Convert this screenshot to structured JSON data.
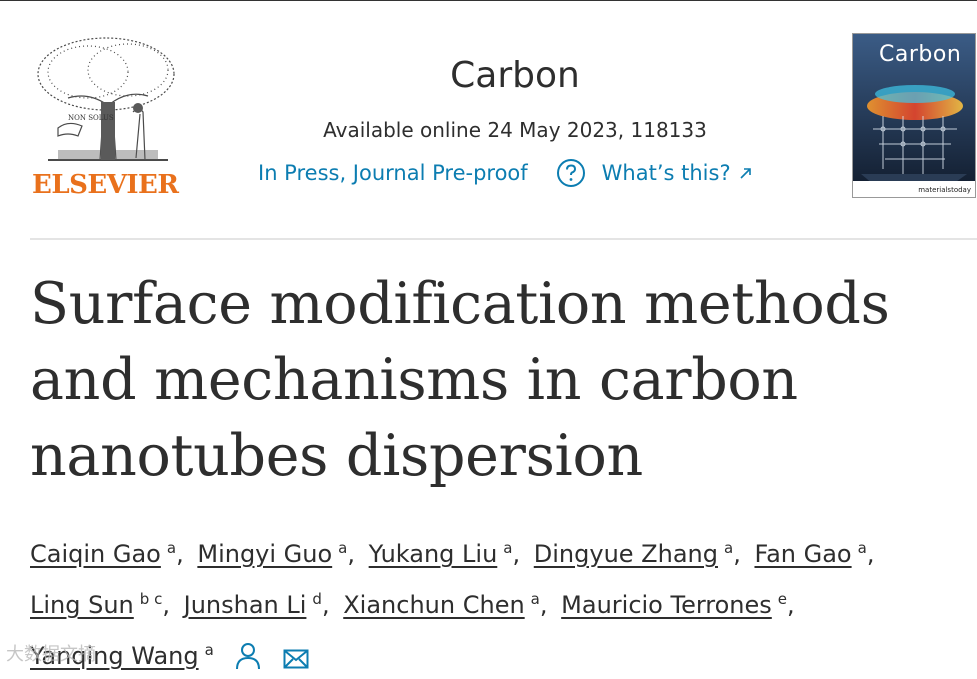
{
  "header": {
    "publisher_logo_text": "ELSEVIER",
    "journal_title": "Carbon",
    "available_online": "Available online 24 May 2023, 118133",
    "status_link": "In Press, Journal Pre-proof",
    "help_link": "What’s this?",
    "cover": {
      "title": "Carbon",
      "brand": "materialstoday"
    }
  },
  "article": {
    "title": "Surface modification methods and mechanisms in carbon nanotubes dispersion"
  },
  "authors": [
    {
      "name": "Caiqin Gao",
      "aff": "a"
    },
    {
      "name": "Mingyi Guo",
      "aff": "a"
    },
    {
      "name": "Yukang Liu",
      "aff": "a"
    },
    {
      "name": "Dingyue Zhang",
      "aff": "a"
    },
    {
      "name": "Fan Gao",
      "aff": "a"
    },
    {
      "name": "Ling Sun",
      "aff": "b c"
    },
    {
      "name": "Junshan Li",
      "aff": "d"
    },
    {
      "name": "Xianchun Chen",
      "aff": "a"
    },
    {
      "name": "Mauricio Terrones",
      "aff": "e"
    },
    {
      "name": "Yanqing Wang",
      "aff": "a"
    }
  ],
  "colors": {
    "link": "#0c7db1",
    "elsevier_orange": "#e9711c",
    "text": "#2e2e2e"
  },
  "watermark": "大数据文摘"
}
